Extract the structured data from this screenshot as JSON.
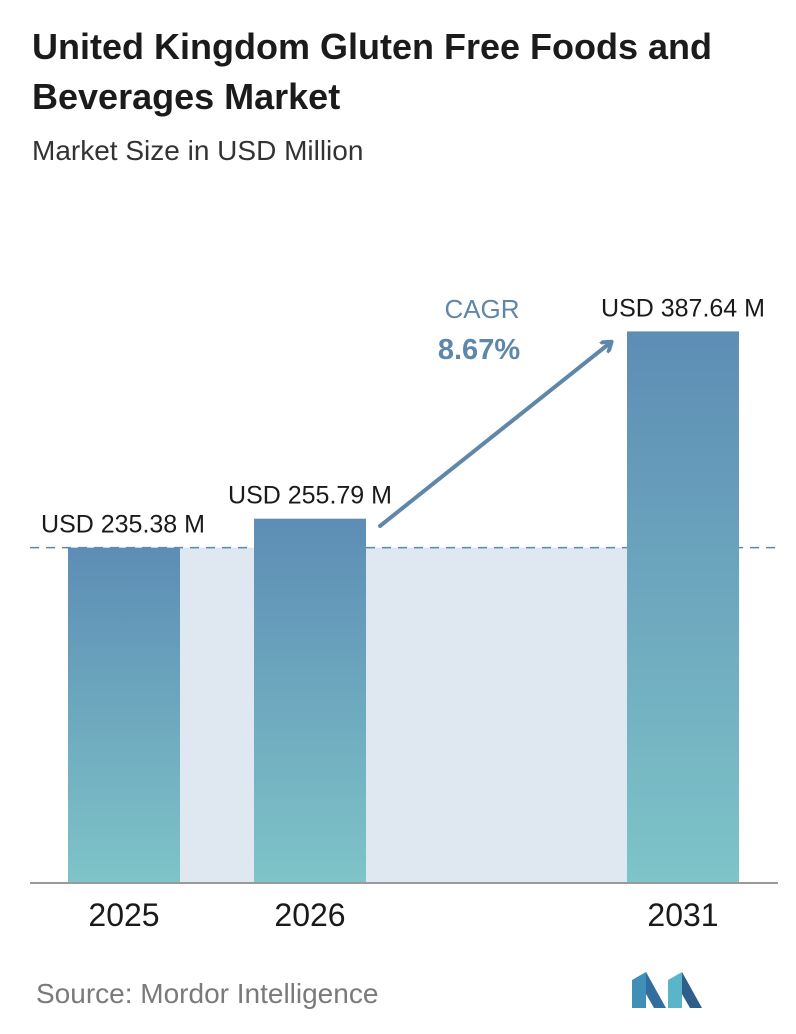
{
  "title": "United Kingdom Gluten Free Foods and Beverages Market",
  "subtitle": "Market Size in USD Million",
  "source": "Source:  Mordor Intelligence",
  "colors": {
    "bar_top": "#5d8db5",
    "bar_bottom": "#7ec4c8",
    "band": "#dfe7f0",
    "dashed_line": "#5f87aa",
    "arrow": "#5f87aa",
    "cagr_text": "#5f87aa"
  },
  "chart_data": {
    "type": "bar",
    "categories": [
      "2025",
      "2026",
      "2031"
    ],
    "values": [
      235.38,
      255.79,
      387.64
    ],
    "value_labels": [
      "USD 235.38 M",
      "USD 255.79 M",
      "USD 387.64 M"
    ],
    "ylim": [
      0,
      400
    ],
    "grid": false,
    "annotation": {
      "label": "CAGR",
      "value": "8.67%"
    }
  }
}
